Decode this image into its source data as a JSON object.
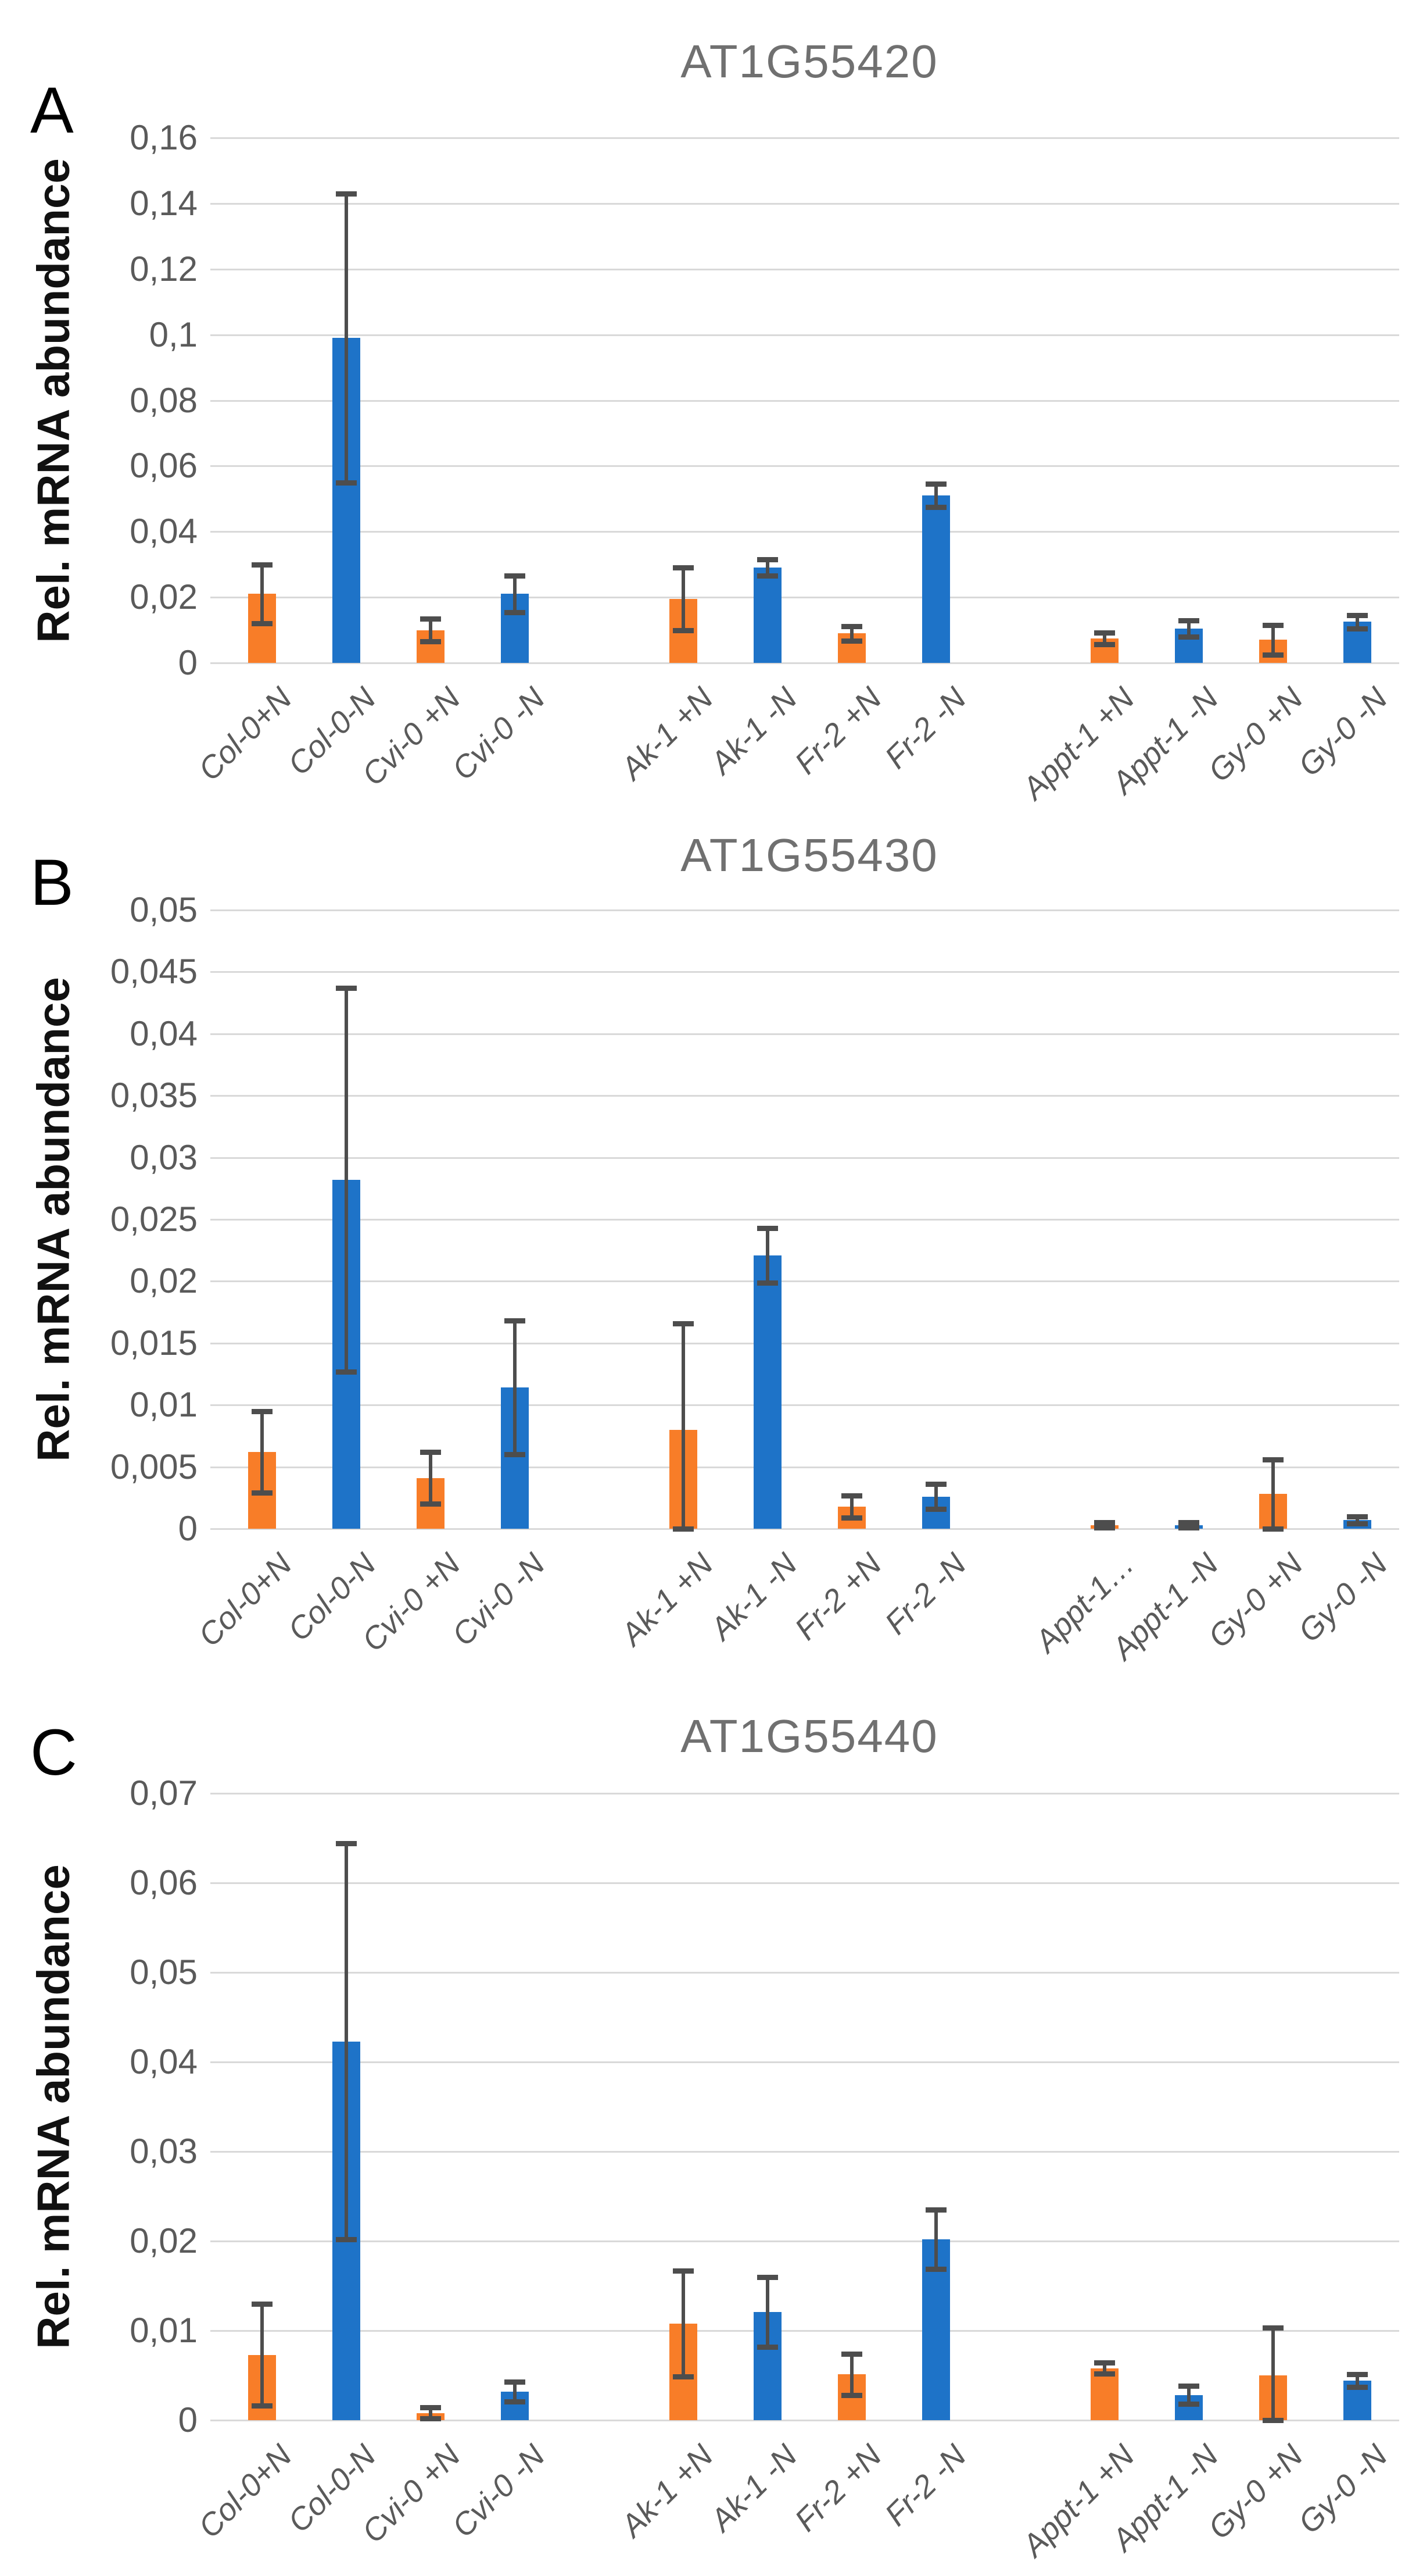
{
  "figure": {
    "background": "#FFFFFF",
    "description_visible_panels": [
      "A",
      "B",
      "C"
    ]
  },
  "colors": {
    "bar_plus_n": "#F87D28",
    "bar_minus_n": "#1E73C8",
    "error_bar": "#4D4D4D",
    "gridline": "#D9D9D9",
    "title_text": "#707070",
    "tick_text": "#5A5A5A",
    "category_text": "#5A5A5A",
    "axis_label_text": "#111111",
    "panel_letter_text": "#000000"
  },
  "chart_data": [
    {
      "type": "bar",
      "panel_label": "A",
      "title": "AT1G55420",
      "ylabel": "Rel. mRNA abundance",
      "xlabel": "",
      "grid": true,
      "legend": "none",
      "ylim": [
        0,
        0.16
      ],
      "ytick_step": 0.02,
      "ytick_labels": [
        "0",
        "0,02",
        "0,04",
        "0,06",
        "0,08",
        "0,1",
        "0,12",
        "0,14",
        "0,16"
      ],
      "categories": [
        "Col-0+N",
        "Col-0-N",
        "Cvi-0 +N",
        "Cvi-0 -N",
        "Ak-1 +N",
        "Ak-1 -N",
        "Fr-2 +N",
        "Fr-2 -N",
        "Appt-1 +N",
        "Appt-1 -N",
        "Gy-0 +N",
        "Gy-0 -N"
      ],
      "series_pattern": [
        "+N",
        "-N"
      ],
      "group_size": 4,
      "values": [
        0.021,
        0.099,
        0.01,
        0.021,
        0.0195,
        0.029,
        0.009,
        0.051,
        0.0075,
        0.0105,
        0.007,
        0.0125
      ],
      "errors": [
        0.009,
        0.044,
        0.0035,
        0.0055,
        0.0095,
        0.0025,
        0.0022,
        0.0035,
        0.0018,
        0.0025,
        0.0045,
        0.002
      ]
    },
    {
      "type": "bar",
      "panel_label": "B",
      "title": "AT1G55430",
      "ylabel": "Rel. mRNA abundance",
      "xlabel": "",
      "grid": true,
      "legend": "none",
      "ylim": [
        0,
        0.05
      ],
      "ytick_step": 0.005,
      "ytick_labels": [
        "0",
        "0,005",
        "0,01",
        "0,015",
        "0,02",
        "0,025",
        "0,03",
        "0,035",
        "0,04",
        "0,045",
        "0,05"
      ],
      "categories": [
        "Col-0+N",
        "Col-0-N",
        "Cvi-0 +N",
        "Cvi-0 -N",
        "Ak-1 +N",
        "Ak-1 -N",
        "Fr-2 +N",
        "Fr-2 -N",
        "Appt-1…",
        "Appt-1 -N",
        "Gy-0 +N",
        "Gy-0 -N"
      ],
      "series_pattern": [
        "+N",
        "-N"
      ],
      "group_size": 4,
      "values": [
        0.0062,
        0.0282,
        0.0041,
        0.0114,
        0.008,
        0.0221,
        0.0018,
        0.0026,
        0.0003,
        0.0003,
        0.0028,
        0.0007
      ],
      "errors": [
        0.0033,
        0.0155,
        0.0021,
        0.0054,
        0.0086,
        0.0022,
        0.0009,
        0.001,
        0.0002,
        0.0002,
        0.0028,
        0.0003
      ]
    },
    {
      "type": "bar",
      "panel_label": "C",
      "title": "AT1G55440",
      "ylabel": "Rel. mRNA abundance",
      "xlabel": "",
      "grid": true,
      "legend": "none",
      "ylim": [
        0,
        0.07
      ],
      "ytick_step": 0.01,
      "ytick_labels": [
        "0",
        "0,01",
        "0,02",
        "0,03",
        "0,04",
        "0,05",
        "0,06",
        "0,07"
      ],
      "categories": [
        "Col-0+N",
        "Col-0-N",
        "Cvi-0 +N",
        "Cvi-0 -N",
        "Ak-1 +N",
        "Ak-1 -N",
        "Fr-2 +N",
        "Fr-2 -N",
        "Appt-1 +N",
        "Appt-1 -N",
        "Gy-0 +N",
        "Gy-0 -N"
      ],
      "series_pattern": [
        "+N",
        "-N"
      ],
      "group_size": 4,
      "values": [
        0.0073,
        0.0423,
        0.0008,
        0.0032,
        0.0108,
        0.0121,
        0.0051,
        0.0202,
        0.0058,
        0.0028,
        0.005,
        0.0044
      ],
      "errors": [
        0.0057,
        0.0221,
        0.0006,
        0.0011,
        0.0059,
        0.0039,
        0.0023,
        0.0033,
        0.0006,
        0.001,
        0.0053,
        0.0007
      ]
    }
  ]
}
